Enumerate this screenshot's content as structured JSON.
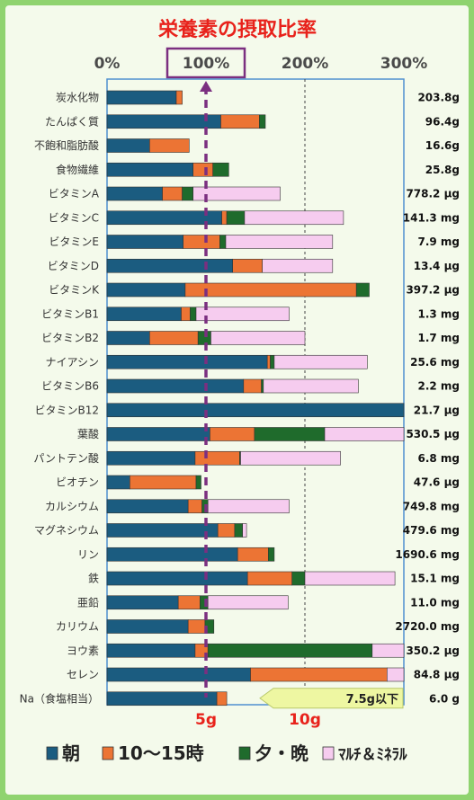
{
  "colors": {
    "morning": "#1b5c80",
    "noon": "#ec7434",
    "evening": "#1f6b2c",
    "supplement": "#f6ccef",
    "title": "#e8221b",
    "marker_line": "#7b2f80",
    "na_pointer": "#eef7a2"
  },
  "chart_data": {
    "type": "bar",
    "orientation": "horizontal",
    "stacked": true,
    "title": "栄養素の摂取比率",
    "x_tick_labels": [
      "0%",
      "100%",
      "200%",
      "300%"
    ],
    "x_ticks": [
      0,
      100,
      200,
      300
    ],
    "xlim": [
      0,
      300
    ],
    "highlight_tick": "100%",
    "legend": {
      "placement": "bottom",
      "items": [
        "朝",
        "10〜15時",
        "夕・晩",
        "ﾏﾙﾁ＆ﾐﾈﾗﾙ"
      ]
    },
    "series": [
      {
        "name": "朝",
        "color": "#1b5c80"
      },
      {
        "name": "10〜15時",
        "color": "#ec7434"
      },
      {
        "name": "夕・晩",
        "color": "#1f6b2c"
      },
      {
        "name": "ﾏﾙﾁ＆ﾐﾈﾗﾙ",
        "color": "#f6ccef"
      }
    ],
    "rows": [
      {
        "label": "炭水化物",
        "amount": "203.8g",
        "values": [
          70,
          6,
          0,
          0
        ]
      },
      {
        "label": "たんぱく質",
        "amount": "96.4g",
        "values": [
          115,
          39,
          6,
          0
        ]
      },
      {
        "label": "不飽和脂肪酸",
        "amount": "16.6g",
        "values": [
          43,
          40,
          0,
          0
        ]
      },
      {
        "label": "食物繊維",
        "amount": "25.8g",
        "values": [
          87,
          20,
          16,
          0
        ]
      },
      {
        "label": "ビタミンA",
        "amount": "778.2 μg",
        "values": [
          56,
          20,
          11,
          88
        ]
      },
      {
        "label": "ビタミンC",
        "amount": "141.3 mg",
        "values": [
          116,
          5,
          18,
          100
        ]
      },
      {
        "label": "ビタミンE",
        "amount": "7.9 mg",
        "values": [
          77,
          37,
          6,
          108
        ]
      },
      {
        "label": "ビタミンD",
        "amount": "13.4 μg",
        "values": [
          127,
          30,
          0,
          71
        ]
      },
      {
        "label": "ビタミンK",
        "amount": "397.2 μg",
        "values": [
          79,
          173,
          13,
          0
        ]
      },
      {
        "label": "ビタミンB1",
        "amount": "1.3 mg",
        "values": [
          75,
          9,
          6,
          94
        ]
      },
      {
        "label": "ビタミンB2",
        "amount": "1.7 mg",
        "values": [
          43,
          49,
          13,
          95
        ]
      },
      {
        "label": "ナイアシン",
        "amount": "25.6 mg",
        "values": [
          162,
          3,
          4,
          94
        ]
      },
      {
        "label": "ビタミンB6",
        "amount": "2.2 mg",
        "values": [
          138,
          18,
          2,
          96
        ]
      },
      {
        "label": "ビタミンB12",
        "amount": "21.7 μg",
        "values": [
          300,
          0,
          0,
          0
        ]
      },
      {
        "label": "葉酸",
        "amount": "530.5 μg",
        "values": [
          104,
          45,
          71,
          80
        ]
      },
      {
        "label": "パントテン酸",
        "amount": "6.8 mg",
        "values": [
          89,
          45,
          1,
          101
        ]
      },
      {
        "label": "ビオチン",
        "amount": "47.6 μg",
        "values": [
          23,
          67,
          5,
          0
        ]
      },
      {
        "label": "カルシウム",
        "amount": "749.8 mg",
        "values": [
          82,
          14,
          6,
          82
        ]
      },
      {
        "label": "マグネシウム",
        "amount": "479.6 mg",
        "values": [
          112,
          17,
          8,
          4
        ]
      },
      {
        "label": "リン",
        "amount": "1690.6 mg",
        "values": [
          132,
          31,
          6,
          0
        ]
      },
      {
        "label": "鉄",
        "amount": "15.1 mg",
        "values": [
          142,
          45,
          13,
          91
        ]
      },
      {
        "label": "亜鉛",
        "amount": "11.0 mg",
        "values": [
          72,
          22,
          8,
          81
        ]
      },
      {
        "label": "カリウム",
        "amount": "2720.0 mg",
        "values": [
          82,
          17,
          9,
          0
        ]
      },
      {
        "label": "ヨウ素",
        "amount": "350.2 μg",
        "values": [
          89,
          13,
          166,
          32
        ]
      },
      {
        "label": "セレン",
        "amount": "84.8 μg",
        "values": [
          145,
          138,
          0,
          17
        ]
      },
      {
        "label": "Na（食塩相当）",
        "amount": "6.0 g",
        "values": [
          111,
          10,
          0,
          0
        ]
      }
    ],
    "na_scale_labels": [
      "5g",
      "10g"
    ],
    "na_scale_values": [
      5,
      10
    ],
    "na_annotation": "7.5g以下",
    "grid": true
  }
}
